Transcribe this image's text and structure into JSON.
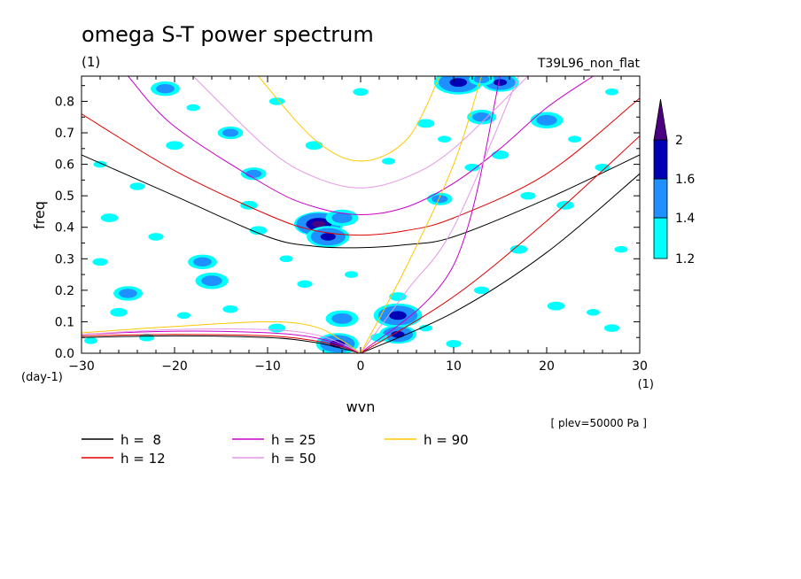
{
  "chart_data": {
    "type": "line",
    "title": "omega S-T power spectrum",
    "subtitle": "(1)",
    "run_label": "T39L96_non_flat",
    "xlabel": "wvn",
    "ylabel": "freq",
    "x_unit": "(1)",
    "y_unit": "(day-1)",
    "xlim": [
      -30,
      30
    ],
    "ylim": [
      0,
      0.88
    ],
    "x_ticks": [
      -30,
      -20,
      -10,
      0,
      10,
      20,
      30
    ],
    "x_tick_labels": [
      "−30",
      "−20",
      "−10",
      "0",
      "10",
      "20",
      "30"
    ],
    "y_ticks": [
      0,
      0.1,
      0.2,
      0.3,
      0.4,
      0.5,
      0.6,
      0.7,
      0.8
    ],
    "y_tick_labels": [
      "0.0",
      "0.1",
      "0.2",
      "0.3",
      "0.4",
      "0.5",
      "0.6",
      "0.7",
      "0.8"
    ],
    "level_note": "[ plev=50000 Pa ]",
    "grid": false,
    "colorbar": {
      "labels": [
        "1.2",
        "1.4",
        "1.6",
        "2"
      ],
      "colors": [
        "#00ffff",
        "#1e90ff",
        "#0000b4",
        "#4b0082"
      ]
    },
    "legend": {
      "placement": "bottom",
      "entries": [
        {
          "label": "h =  8",
          "color": "#000000"
        },
        {
          "label": "h = 12",
          "color": "#e00000"
        },
        {
          "label": "h = 25",
          "color": "#c800c8"
        },
        {
          "label": "h = 50",
          "color": "#e696e6"
        },
        {
          "label": "h = 90",
          "color": "#ffc800"
        }
      ]
    },
    "series": [
      {
        "name": "h =  8",
        "color": "#000000",
        "curves": {
          "inertia_gravity_n1": {
            "x": [
              -30,
              -20,
              -10,
              -5,
              0,
              5,
              10,
              20,
              30
            ],
            "y": [
              0.63,
              0.5,
              0.37,
              0.34,
              0.335,
              0.345,
              0.37,
              0.49,
              0.63
            ]
          },
          "kelvin": {
            "x": [
              0,
              10,
              20,
              30
            ],
            "y": [
              0,
              0.13,
              0.32,
              0.57
            ]
          },
          "rossby_n1": {
            "x": [
              -30,
              -20,
              -10,
              -5,
              -2,
              0
            ],
            "y": [
              0.05,
              0.055,
              0.05,
              0.035,
              0.015,
              0
            ]
          }
        }
      },
      {
        "name": "h = 12",
        "color": "#e00000",
        "curves": {
          "inertia_gravity_n1": {
            "x": [
              -30,
              -20,
              -10,
              -5,
              0,
              5,
              10,
              20,
              30
            ],
            "y": [
              0.76,
              0.58,
              0.44,
              0.39,
              0.375,
              0.39,
              0.43,
              0.57,
              0.81
            ]
          },
          "kelvin": {
            "x": [
              0,
              10,
              20,
              30
            ],
            "y": [
              0,
              0.18,
              0.42,
              0.69
            ]
          },
          "rossby_n1": {
            "x": [
              -30,
              -20,
              -10,
              -5,
              -2,
              0
            ],
            "y": [
              0.055,
              0.06,
              0.055,
              0.04,
              0.02,
              0
            ]
          }
        }
      },
      {
        "name": "h = 25",
        "color": "#c800c8",
        "curves": {
          "inertia_gravity_n1": {
            "x": [
              -25,
              -20,
              -10,
              -5,
              0,
              5,
              10,
              15,
              20,
              25
            ],
            "y": [
              0.88,
              0.72,
              0.53,
              0.465,
              0.44,
              0.465,
              0.54,
              0.65,
              0.78,
              0.88
            ]
          },
          "kelvin": {
            "x": [
              0,
              10,
              15
            ],
            "y": [
              0,
              0.28,
              0.88
            ]
          },
          "rossby_n1": {
            "x": [
              -30,
              -20,
              -10,
              -5,
              -2,
              0
            ],
            "y": [
              0.06,
              0.07,
              0.065,
              0.05,
              0.025,
              0
            ]
          }
        }
      },
      {
        "name": "h = 50",
        "color": "#e696e6",
        "curves": {
          "inertia_gravity_n1": {
            "x": [
              -18,
              -10,
              -5,
              0,
              5,
              10,
              18
            ],
            "y": [
              0.88,
              0.65,
              0.56,
              0.525,
              0.56,
              0.65,
              0.88
            ]
          },
          "kelvin": {
            "x": [
              0,
              5,
              10,
              17
            ],
            "y": [
              0,
              0.2,
              0.4,
              0.88
            ]
          },
          "rossby_n1": {
            "x": [
              -30,
              -20,
              -10,
              -5,
              -2,
              0
            ],
            "y": [
              0.06,
              0.075,
              0.075,
              0.06,
              0.03,
              0
            ]
          }
        }
      },
      {
        "name": "h = 90",
        "color": "#ffc800",
        "curves": {
          "inertia_gravity_n1": {
            "x": [
              -11,
              -5,
              0,
              5,
              8.5
            ],
            "y": [
              0.88,
              0.68,
              0.61,
              0.68,
              0.88
            ]
          },
          "kelvin": {
            "x": [
              0,
              5,
              10,
              13
            ],
            "y": [
              0,
              0.28,
              0.6,
              0.88
            ]
          },
          "rossby_n1": {
            "x": [
              -30,
              -20,
              -10,
              -5,
              -2,
              0
            ],
            "y": [
              0.065,
              0.085,
              0.1,
              0.085,
              0.04,
              0
            ]
          }
        }
      }
    ],
    "power_contours": {
      "note": "shaded spectral power patches (approx. locations in data units)",
      "patches": [
        {
          "x": -4.5,
          "y": 0.41,
          "level": 4
        },
        {
          "x": -3.5,
          "y": 0.37,
          "level": 3
        },
        {
          "x": 4,
          "y": 0.12,
          "level": 3
        },
        {
          "x": 4,
          "y": 0.06,
          "level": 3
        },
        {
          "x": -2.5,
          "y": 0.03,
          "level": 3
        },
        {
          "x": 10.5,
          "y": 0.86,
          "level": 3
        },
        {
          "x": 15,
          "y": 0.86,
          "level": 3
        },
        {
          "x": -21,
          "y": 0.84,
          "level": 2
        },
        {
          "x": -16,
          "y": 0.23,
          "level": 2
        },
        {
          "x": -14,
          "y": 0.7,
          "level": 2
        },
        {
          "x": -17,
          "y": 0.29,
          "level": 2
        },
        {
          "x": -2,
          "y": 0.43,
          "level": 2
        },
        {
          "x": 8.5,
          "y": 0.49,
          "level": 2
        },
        {
          "x": 13,
          "y": 0.75,
          "level": 2
        },
        {
          "x": 20,
          "y": 0.74,
          "level": 2
        },
        {
          "x": -11.5,
          "y": 0.57,
          "level": 2
        },
        {
          "x": -25,
          "y": 0.19,
          "level": 2
        },
        {
          "x": -2,
          "y": 0.11,
          "level": 2
        },
        {
          "x": 13,
          "y": 0.87,
          "level": 2
        },
        {
          "x": -22,
          "y": 0.37,
          "level": 1
        },
        {
          "x": -27,
          "y": 0.43,
          "level": 1
        },
        {
          "x": -28,
          "y": 0.6,
          "level": 1
        },
        {
          "x": -24,
          "y": 0.53,
          "level": 1
        },
        {
          "x": -12,
          "y": 0.47,
          "level": 1
        },
        {
          "x": -8,
          "y": 0.3,
          "level": 1
        },
        {
          "x": -6,
          "y": 0.22,
          "level": 1
        },
        {
          "x": 7,
          "y": 0.73,
          "level": 1
        },
        {
          "x": 9,
          "y": 0.68,
          "level": 1
        },
        {
          "x": 12,
          "y": 0.59,
          "level": 1
        },
        {
          "x": 15,
          "y": 0.63,
          "level": 1
        },
        {
          "x": 23,
          "y": 0.68,
          "level": 1
        },
        {
          "x": 26,
          "y": 0.59,
          "level": 1
        },
        {
          "x": 21,
          "y": 0.15,
          "level": 1
        },
        {
          "x": 25,
          "y": 0.13,
          "level": 1
        },
        {
          "x": 13,
          "y": 0.2,
          "level": 1
        },
        {
          "x": 17,
          "y": 0.33,
          "level": 1
        },
        {
          "x": 28,
          "y": 0.33,
          "level": 1
        },
        {
          "x": 27,
          "y": 0.08,
          "level": 1
        },
        {
          "x": -26,
          "y": 0.13,
          "level": 1
        },
        {
          "x": -19,
          "y": 0.12,
          "level": 1
        },
        {
          "x": -14,
          "y": 0.14,
          "level": 1
        },
        {
          "x": -9,
          "y": 0.08,
          "level": 1
        },
        {
          "x": -29,
          "y": 0.04,
          "level": 1
        },
        {
          "x": -23,
          "y": 0.05,
          "level": 1
        },
        {
          "x": 2,
          "y": 0.05,
          "level": 1
        },
        {
          "x": 7,
          "y": 0.08,
          "level": 1
        },
        {
          "x": 10,
          "y": 0.03,
          "level": 1
        },
        {
          "x": 4,
          "y": 0.18,
          "level": 1
        },
        {
          "x": -18,
          "y": 0.78,
          "level": 1
        },
        {
          "x": -9,
          "y": 0.8,
          "level": 1
        },
        {
          "x": -5,
          "y": 0.66,
          "level": 1
        },
        {
          "x": 3,
          "y": 0.61,
          "level": 1
        },
        {
          "x": 0,
          "y": 0.83,
          "level": 1
        },
        {
          "x": -20,
          "y": 0.66,
          "level": 1
        },
        {
          "x": 27,
          "y": 0.83,
          "level": 1
        },
        {
          "x": 18,
          "y": 0.5,
          "level": 1
        },
        {
          "x": 22,
          "y": 0.47,
          "level": 1
        },
        {
          "x": -1,
          "y": 0.25,
          "level": 1
        },
        {
          "x": -28,
          "y": 0.29,
          "level": 1
        },
        {
          "x": -11,
          "y": 0.39,
          "level": 1
        }
      ]
    }
  }
}
